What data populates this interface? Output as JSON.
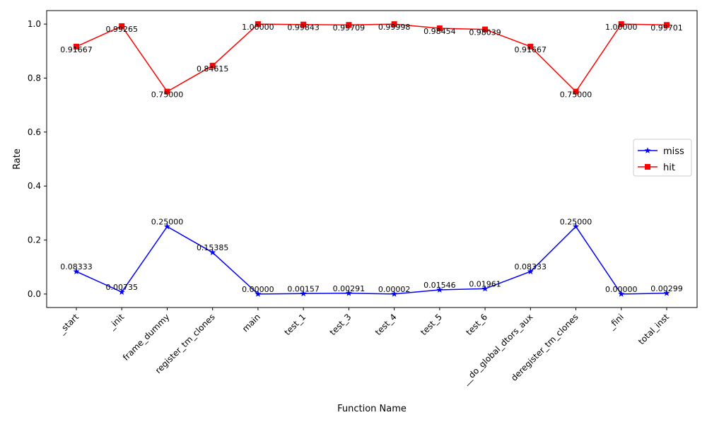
{
  "chart_data": {
    "type": "line",
    "title": "",
    "xlabel": "Function Name",
    "ylabel": "Rate",
    "ylim": [
      -0.05,
      1.05
    ],
    "yticks": [
      "0.0",
      "0.2",
      "0.4",
      "0.6",
      "0.8",
      "1.0"
    ],
    "ytick_values": [
      0.0,
      0.2,
      0.4,
      0.6,
      0.8,
      1.0
    ],
    "grid": false,
    "legend_position": "center-right",
    "categories": [
      "_start",
      "_init",
      "frame_dummy",
      "register_tm_clones",
      "main",
      "test_1",
      "test_3",
      "test_4",
      "test_5",
      "test_6",
      "__do_global_dtors_aux",
      "deregister_tm_clones",
      "_fini",
      "total_inst"
    ],
    "series": [
      {
        "name": "miss",
        "color": "#0000ff",
        "marker": "star",
        "values": [
          0.08333,
          0.00735,
          0.25,
          0.15385,
          0.0,
          0.00157,
          0.00291,
          2e-05,
          0.01546,
          0.01961,
          0.08333,
          0.25,
          0.0,
          0.00299
        ],
        "labels": [
          "0.08333",
          "0.00735",
          "0.25000",
          "0.15385",
          "0.00000",
          "0.00157",
          "0.00291",
          "0.00002",
          "0.01546",
          "0.01961",
          "0.08333",
          "0.25000",
          "0.00000",
          "0.00299"
        ]
      },
      {
        "name": "hit",
        "color": "#ff0000",
        "marker": "square",
        "values": [
          0.91667,
          0.99265,
          0.75,
          0.84615,
          1.0,
          0.99843,
          0.99709,
          0.99998,
          0.98454,
          0.98039,
          0.91667,
          0.75,
          1.0,
          0.99701
        ],
        "labels": [
          "0.91667",
          "0.99265",
          "0.75000",
          "0.84615",
          "1.00000",
          "0.99843",
          "0.99709",
          "0.99998",
          "0.98454",
          "0.98039",
          "0.91667",
          "0.75000",
          "1.00000",
          "0.99701"
        ]
      }
    ]
  }
}
